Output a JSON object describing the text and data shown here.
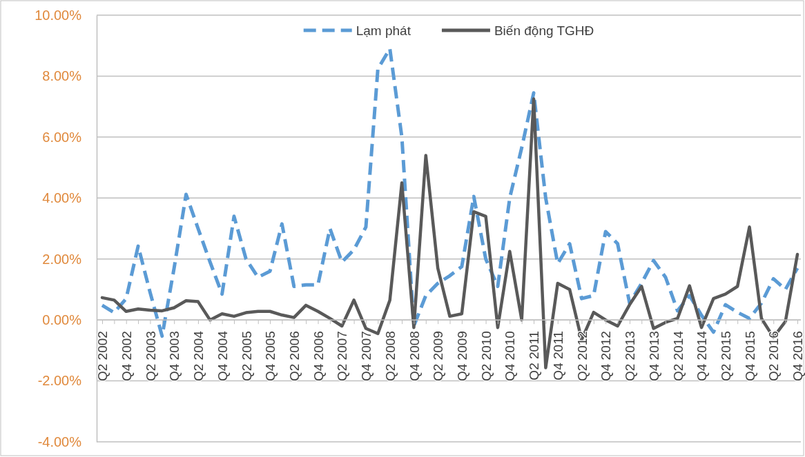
{
  "chart_data": {
    "type": "line",
    "categories": [
      "Q2 2002",
      null,
      "Q4 2002",
      null,
      "Q2 2003",
      null,
      "Q4 2003",
      null,
      "Q2 2004",
      null,
      "Q4 2004",
      null,
      "Q2 2005",
      null,
      "Q4 2005",
      null,
      "Q2 2006",
      null,
      "Q4 2006",
      null,
      "Q2 2007",
      null,
      "Q4 2007",
      null,
      "Q2 2008",
      null,
      "Q4 2008",
      null,
      "Q2 2009",
      null,
      "Q4 2009",
      null,
      "Q2 2010",
      null,
      "Q4 2010",
      null,
      "Q2 2011",
      null,
      "Q4 2011",
      null,
      "Q2 2012",
      null,
      "Q4 2012",
      null,
      "Q2 2013",
      null,
      "Q4 2013",
      null,
      "Q2 2014",
      null,
      "Q4 2014",
      null,
      "Q2 2015",
      null,
      "Q4 2015",
      null,
      "Q2 2016",
      null,
      "Q4 2016"
    ],
    "series": [
      {
        "name": "Lạm phát",
        "color": "#5b9bd5",
        "line_style": "dashed",
        "values": [
          0.48,
          0.24,
          0.7,
          2.42,
          0.9,
          -0.53,
          1.7,
          4.12,
          3.0,
          1.9,
          0.85,
          3.4,
          2.0,
          1.4,
          1.6,
          3.15,
          1.1,
          1.15,
          1.15,
          3.0,
          1.9,
          2.3,
          3.05,
          8.24,
          8.9,
          6.0,
          -0.2,
          0.8,
          1.2,
          1.45,
          1.75,
          4.05,
          2.0,
          1.1,
          4.0,
          5.65,
          7.45,
          4.0,
          1.85,
          2.5,
          0.7,
          0.8,
          2.9,
          2.5,
          0.55,
          1.2,
          1.95,
          1.4,
          0.3,
          0.8,
          0.15,
          -0.4,
          0.5,
          0.25,
          0.05,
          0.55,
          1.35,
          1.0,
          1.7
        ]
      },
      {
        "name": "Biến động TGHĐ",
        "color": "#595959",
        "line_style": "solid",
        "values": [
          0.73,
          0.65,
          0.28,
          0.36,
          0.32,
          0.3,
          0.4,
          0.63,
          0.6,
          0.0,
          0.2,
          0.12,
          0.24,
          0.28,
          0.28,
          0.16,
          0.08,
          0.48,
          0.28,
          0.05,
          -0.2,
          0.65,
          -0.28,
          -0.45,
          0.65,
          4.5,
          -0.25,
          5.4,
          1.7,
          0.12,
          0.2,
          3.55,
          3.4,
          -0.25,
          2.25,
          0.0,
          7.25,
          -1.57,
          1.2,
          1.0,
          -0.65,
          0.25,
          0.0,
          -0.2,
          0.5,
          1.1,
          -0.28,
          -0.08,
          0.05,
          1.12,
          -0.25,
          0.7,
          0.85,
          1.1,
          3.05,
          0.05,
          -0.57,
          -0.05,
          2.15
        ]
      }
    ],
    "ylim": [
      -4,
      10
    ],
    "yticks": [
      {
        "value": -4,
        "label": "-4.00%"
      },
      {
        "value": -2,
        "label": "-2.00%"
      },
      {
        "value": 0,
        "label": "0.00%"
      },
      {
        "value": 2,
        "label": "2.00%"
      },
      {
        "value": 4,
        "label": "4.00%"
      },
      {
        "value": 6,
        "label": "6.00%"
      },
      {
        "value": 8,
        "label": "8.00%"
      },
      {
        "value": 10,
        "label": "10.00%"
      }
    ],
    "grid": "y",
    "legend": "top",
    "marker": "none"
  }
}
